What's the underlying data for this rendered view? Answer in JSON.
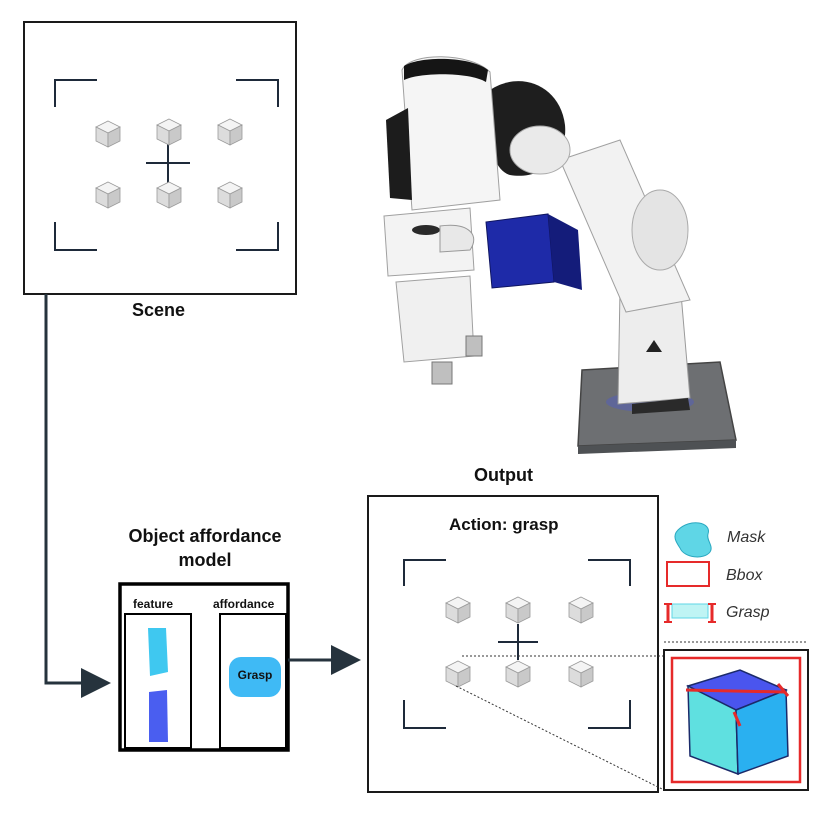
{
  "scene": {
    "label": "Scene"
  },
  "output": {
    "label": "Output",
    "action_label": "Action: grasp"
  },
  "model": {
    "title": "Object affordance model",
    "feature_label": "feature",
    "affordance_label": "affordance",
    "affordance_value": "Grasp"
  },
  "legend": {
    "mask_label": "Mask",
    "bbox_label": "Bbox",
    "grasp_label": "Grasp"
  },
  "colors": {
    "frame": "#1a1a1a",
    "corner": "#1e2a3a",
    "cube_face": "#e6e6e6",
    "mask_cyan": "#3fc8e6",
    "feature_blue": "#4a5ef0",
    "bbox_red": "#e62a2a",
    "cube_top": "#4a55ee",
    "cube_left": "#5fe0e0",
    "cube_right": "#2ab0f0"
  }
}
